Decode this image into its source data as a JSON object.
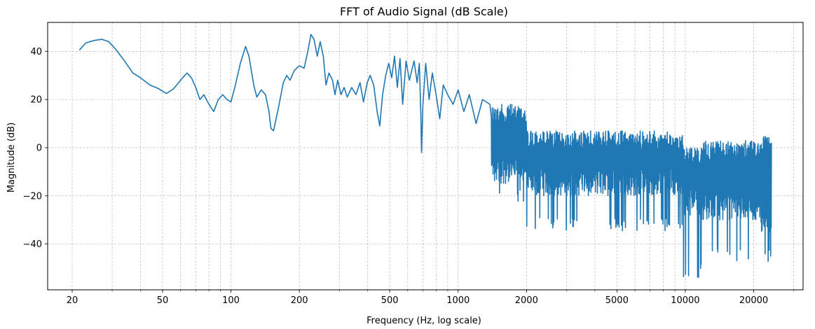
{
  "chart_data": {
    "type": "line",
    "title": "FFT of Audio Signal (dB Scale)",
    "xlabel": "Frequency (Hz, log scale)",
    "ylabel": "Magnitude (dB)",
    "x_scale": "log",
    "xlim": [
      15.6,
      33000
    ],
    "ylim": [
      -59,
      52
    ],
    "grid": true,
    "line_color": "#1f77b4",
    "x_major_ticks": [
      20,
      50,
      100,
      200,
      500,
      1000,
      2000,
      5000,
      10000,
      20000
    ],
    "x_tick_labels": [
      "20",
      "50",
      "100",
      "200",
      "500",
      "1000",
      "2000",
      "5000",
      "10000",
      "20000"
    ],
    "y_ticks": [
      -40,
      -20,
      0,
      20,
      40
    ],
    "y_tick_labels": [
      "−40",
      "−20",
      "0",
      "20",
      "40"
    ],
    "series": [
      {
        "points": [
          [
            21.5,
            40.5
          ],
          [
            23,
            43.5
          ],
          [
            25,
            44.5
          ],
          [
            27,
            45
          ],
          [
            29,
            44
          ],
          [
            31,
            41
          ],
          [
            34,
            36
          ],
          [
            37,
            31
          ],
          [
            40,
            29
          ],
          [
            44,
            26
          ],
          [
            48,
            24.5
          ],
          [
            52,
            22.5
          ],
          [
            56,
            24.5
          ],
          [
            60,
            28
          ],
          [
            64,
            31
          ],
          [
            67,
            29
          ],
          [
            70,
            25
          ],
          [
            73,
            20
          ],
          [
            76,
            22
          ],
          [
            80,
            18
          ],
          [
            84,
            15
          ],
          [
            88,
            20
          ],
          [
            92,
            22
          ],
          [
            96,
            20
          ],
          [
            100,
            19
          ],
          [
            104,
            25
          ],
          [
            110,
            35
          ],
          [
            116,
            42
          ],
          [
            120,
            38
          ],
          [
            126,
            26
          ],
          [
            130,
            21
          ],
          [
            136,
            24
          ],
          [
            142,
            22
          ],
          [
            147,
            15
          ],
          [
            150,
            8
          ],
          [
            154,
            7
          ],
          [
            158,
            12
          ],
          [
            163,
            18
          ],
          [
            170,
            27
          ],
          [
            176,
            30
          ],
          [
            182,
            28
          ],
          [
            190,
            32
          ],
          [
            200,
            34
          ],
          [
            210,
            33
          ],
          [
            218,
            40
          ],
          [
            225,
            47
          ],
          [
            232,
            45
          ],
          [
            240,
            38
          ],
          [
            247,
            44
          ],
          [
            255,
            38
          ],
          [
            262,
            26
          ],
          [
            270,
            31
          ],
          [
            280,
            28
          ],
          [
            287,
            22
          ],
          [
            295,
            28
          ],
          [
            305,
            22
          ],
          [
            315,
            25
          ],
          [
            325,
            21
          ],
          [
            340,
            25
          ],
          [
            355,
            22
          ],
          [
            370,
            27
          ],
          [
            383,
            19
          ],
          [
            398,
            27
          ],
          [
            410,
            30
          ],
          [
            425,
            26
          ],
          [
            440,
            15
          ],
          [
            452,
            9
          ],
          [
            465,
            22
          ],
          [
            480,
            30
          ],
          [
            495,
            35
          ],
          [
            510,
            29
          ],
          [
            525,
            38
          ],
          [
            540,
            25
          ],
          [
            555,
            37
          ],
          [
            570,
            18
          ],
          [
            590,
            36
          ],
          [
            610,
            28
          ],
          [
            640,
            36
          ],
          [
            660,
            27
          ],
          [
            675,
            35
          ],
          [
            685,
            15
          ],
          [
            690,
            -2
          ],
          [
            700,
            18
          ],
          [
            720,
            35
          ],
          [
            745,
            20
          ],
          [
            770,
            31
          ],
          [
            800,
            22
          ],
          [
            830,
            12
          ],
          [
            860,
            26
          ],
          [
            900,
            22
          ],
          [
            950,
            18
          ],
          [
            1000,
            24
          ],
          [
            1060,
            15
          ],
          [
            1120,
            22
          ],
          [
            1200,
            10
          ],
          [
            1280,
            20
          ],
          [
            1380,
            18
          ],
          [
            1450,
            10
          ]
        ],
        "noise_bands": [
          {
            "x_range": [
              1400,
              2000
            ],
            "upper": 18,
            "lower": -15,
            "min_dip": -23
          },
          {
            "x_range": [
              2000,
              9800
            ],
            "upper": 7,
            "lower": -20,
            "min_dip": -35
          },
          {
            "x_range": [
              9800,
              11800
            ],
            "upper": 0,
            "lower": -28,
            "min_dip": -54
          },
          {
            "x_range": [
              11800,
              21500
            ],
            "upper": 3,
            "lower": -30,
            "min_dip": -47
          },
          {
            "x_range": [
              21500,
              24000
            ],
            "upper": 5,
            "lower": -35,
            "min_dip": -48
          }
        ]
      }
    ]
  }
}
